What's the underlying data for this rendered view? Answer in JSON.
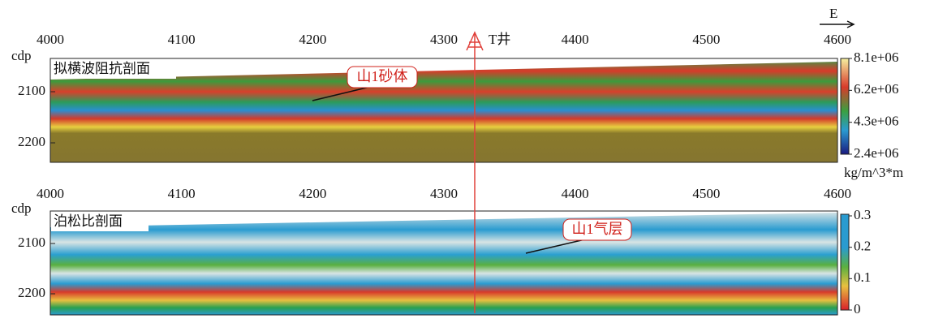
{
  "header": {
    "direction": "E"
  },
  "well": {
    "label": "T井"
  },
  "panels": [
    {
      "title": "拟横波阻抗剖面",
      "x_axis_label": "cdp",
      "xticks": [
        4000,
        4100,
        4200,
        4300,
        4400,
        4500,
        4600
      ],
      "yticks": [
        2100,
        2200
      ],
      "colorbar_ticks": [
        "8.1e+06",
        "6.2e+06",
        "4.3e+06",
        "2.4e+06"
      ],
      "colorbar_unit": "kg/m^3*m",
      "annotation": "山1砂体"
    },
    {
      "title": "泊松比剖面",
      "x_axis_label": "cdp",
      "xticks": [
        4000,
        4100,
        4200,
        4300,
        4400,
        4500,
        4600
      ],
      "yticks": [
        2100,
        2200
      ],
      "colorbar_ticks": [
        "0.3",
        "0.2",
        "0.1",
        "0"
      ],
      "annotation": "山1气层"
    }
  ]
}
